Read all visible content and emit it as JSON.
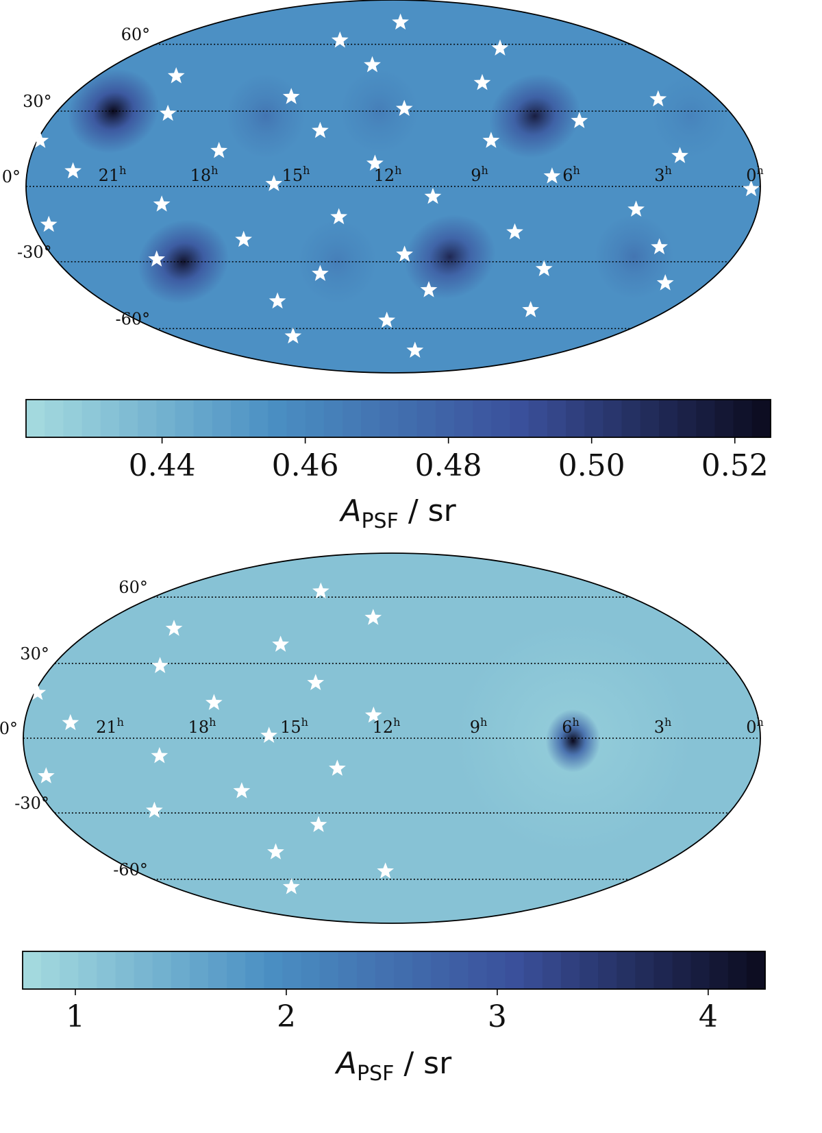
{
  "chart_data": [
    {
      "type": "heatmap",
      "projection": "mollweide",
      "title": "",
      "ra_labels": [
        "21",
        "18",
        "15",
        "12",
        "9",
        "6",
        "3",
        "0"
      ],
      "ra_unit": "h",
      "dec_labels": [
        "60°",
        "30°",
        "0°",
        "-30°",
        "-60°"
      ],
      "colorbar": {
        "label_main": "A",
        "label_sub": "PSF",
        "label_rest": " / sr",
        "range": [
          0.421,
          0.525
        ],
        "ticks": [
          "0.44",
          "0.46",
          "0.48",
          "0.50",
          "0.52"
        ],
        "tick_values": [
          0.44,
          0.46,
          0.48,
          0.5,
          0.52
        ]
      },
      "colormap": [
        "#a6dcdf",
        "#4a8fc3",
        "#3a4f9a",
        "#0b0a1d"
      ],
      "background_value": 0.455,
      "hotspots": [
        {
          "ra_h": 22,
          "dec": 30,
          "value": 0.525
        },
        {
          "ra_h": 7,
          "dec": 28,
          "value": 0.515
        },
        {
          "ra_h": 19.5,
          "dec": -30,
          "value": 0.52
        },
        {
          "ra_h": 10,
          "dec": -28,
          "value": 0.51
        },
        {
          "ra_h": 16.5,
          "dec": 28,
          "value": 0.47
        },
        {
          "ra_h": 12.5,
          "dec": 30,
          "value": 0.465
        },
        {
          "ra_h": 14,
          "dec": -30,
          "value": 0.465
        },
        {
          "ra_h": 3.5,
          "dec": -28,
          "value": 0.47
        },
        {
          "ra_h": 1.5,
          "dec": 28,
          "value": 0.462
        }
      ],
      "stars": [
        {
          "ra_h": 14.8,
          "dec": 62
        },
        {
          "ra_h": 11.5,
          "dec": 72
        },
        {
          "ra_h": 6.8,
          "dec": 58
        },
        {
          "ra_h": 20.8,
          "dec": 45
        },
        {
          "ra_h": 12.9,
          "dec": 50
        },
        {
          "ra_h": 8.5,
          "dec": 42
        },
        {
          "ra_h": 15.8,
          "dec": 36
        },
        {
          "ra_h": 2.2,
          "dec": 35
        },
        {
          "ra_h": 20,
          "dec": 29
        },
        {
          "ra_h": 11.6,
          "dec": 31
        },
        {
          "ra_h": 5.5,
          "dec": 26
        },
        {
          "ra_h": 14.5,
          "dec": 22
        },
        {
          "ra_h": 23.9,
          "dec": 18
        },
        {
          "ra_h": 8.7,
          "dec": 18
        },
        {
          "ra_h": 17.8,
          "dec": 14
        },
        {
          "ra_h": 2.5,
          "dec": 12
        },
        {
          "ra_h": 12.6,
          "dec": 9
        },
        {
          "ra_h": 22.5,
          "dec": 6
        },
        {
          "ra_h": 6.8,
          "dec": 4
        },
        {
          "ra_h": 15.9,
          "dec": 1
        },
        {
          "ra_h": 10.7,
          "dec": -4
        },
        {
          "ra_h": 0.3,
          "dec": -1
        },
        {
          "ra_h": 19.6,
          "dec": -7
        },
        {
          "ra_h": 4.0,
          "dec": -9
        },
        {
          "ra_h": 13.8,
          "dec": -12
        },
        {
          "ra_h": 23.5,
          "dec": -15
        },
        {
          "ra_h": 7.9,
          "dec": -18
        },
        {
          "ra_h": 17.1,
          "dec": -21
        },
        {
          "ra_h": 11.6,
          "dec": -27
        },
        {
          "ra_h": 2.8,
          "dec": -24
        },
        {
          "ra_h": 20.4,
          "dec": -29
        },
        {
          "ra_h": 6.5,
          "dec": -33
        },
        {
          "ra_h": 14.7,
          "dec": -35
        },
        {
          "ra_h": 1.6,
          "dec": -39
        },
        {
          "ra_h": 10.6,
          "dec": -42
        },
        {
          "ra_h": 16.8,
          "dec": -47
        },
        {
          "ra_h": 6.0,
          "dec": -51
        },
        {
          "ra_h": 12.3,
          "dec": -56
        },
        {
          "ra_h": 17.5,
          "dec": -64
        },
        {
          "ra_h": 10.5,
          "dec": -72
        }
      ]
    },
    {
      "type": "heatmap",
      "projection": "mollweide",
      "title": "",
      "ra_labels": [
        "21",
        "18",
        "15",
        "12",
        "9",
        "6",
        "3",
        "0"
      ],
      "ra_unit": "h",
      "dec_labels": [
        "60°",
        "30°",
        "0°",
        "-30°",
        "-60°"
      ],
      "colorbar": {
        "label_main": "A",
        "label_sub": "PSF",
        "label_rest": " / sr",
        "range": [
          0.75,
          4.27
        ],
        "ticks": [
          "1",
          "2",
          "3",
          "4"
        ],
        "tick_values": [
          1,
          2,
          3,
          4
        ]
      },
      "colormap": [
        "#a6dcdf",
        "#4a8fc3",
        "#3a4f9a",
        "#0b0a1d"
      ],
      "background_value": 1.15,
      "halo": {
        "ra_h": 6.1,
        "dec": 0,
        "value": 0.98
      },
      "hotspots": [
        {
          "ra_h": 6.1,
          "dec": -1,
          "value": 4.27
        }
      ],
      "stars": [
        {
          "ra_h": 15.8,
          "dec": 63
        },
        {
          "ra_h": 12.8,
          "dec": 50
        },
        {
          "ra_h": 20.8,
          "dec": 45
        },
        {
          "ra_h": 16.2,
          "dec": 38
        },
        {
          "ra_h": 20.2,
          "dec": 29
        },
        {
          "ra_h": 14.6,
          "dec": 22
        },
        {
          "ra_h": 23.9,
          "dec": 18
        },
        {
          "ra_h": 17.9,
          "dec": 14
        },
        {
          "ra_h": 12.6,
          "dec": 9
        },
        {
          "ra_h": 22.5,
          "dec": 6
        },
        {
          "ra_h": 16.0,
          "dec": 1
        },
        {
          "ra_h": 19.6,
          "dec": -7
        },
        {
          "ra_h": 13.8,
          "dec": -12
        },
        {
          "ra_h": 23.5,
          "dec": -15
        },
        {
          "ra_h": 17.1,
          "dec": -21
        },
        {
          "ra_h": 20.4,
          "dec": -29
        },
        {
          "ra_h": 14.7,
          "dec": -35
        },
        {
          "ra_h": 16.8,
          "dec": -47
        },
        {
          "ra_h": 12.3,
          "dec": -56
        },
        {
          "ra_h": 17.5,
          "dec": -64
        }
      ]
    }
  ]
}
